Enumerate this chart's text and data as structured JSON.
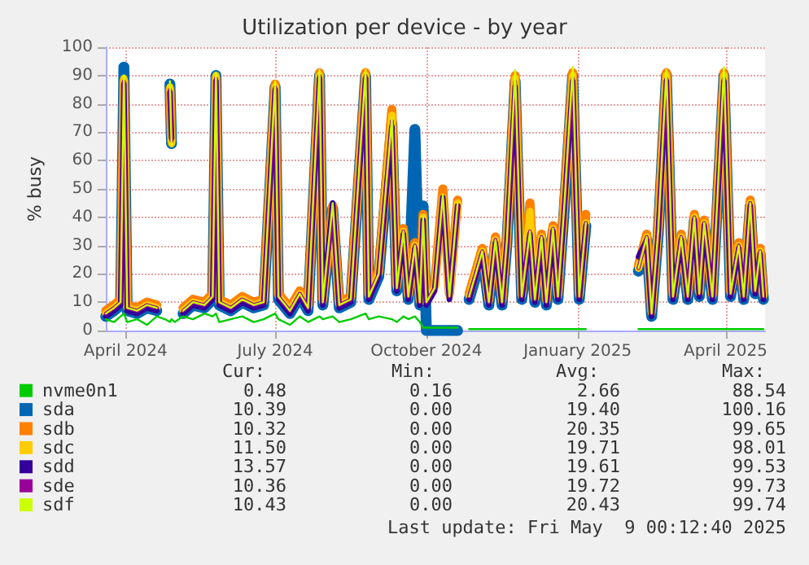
{
  "chart_data": {
    "type": "line",
    "title": "Utilization per device - by year",
    "ylabel": "% busy",
    "x": [
      "2024-04-03",
      "2024-04-08",
      "2024-04-12",
      "2024-04-14",
      "2024-04-16",
      "2024-04-22",
      "2024-04-28",
      "2024-05-04",
      "2024-05-09",
      "2024-05-12",
      "2024-05-13",
      "2024-05-15",
      "2024-05-20",
      "2024-05-26",
      "2024-06-02",
      "2024-06-07",
      "2024-06-09",
      "2024-06-11",
      "2024-06-18",
      "2024-06-25",
      "2024-07-02",
      "2024-07-08",
      "2024-07-15",
      "2024-07-17",
      "2024-07-24",
      "2024-07-30",
      "2024-08-04",
      "2024-08-11",
      "2024-08-13",
      "2024-08-19",
      "2024-08-23",
      "2024-08-30",
      "2024-09-08",
      "2024-09-10",
      "2024-09-16",
      "2024-09-24",
      "2024-09-27",
      "2024-10-01",
      "2024-10-04",
      "2024-10-08",
      "2024-10-11",
      "2024-10-13",
      "2024-10-15",
      "2024-10-20",
      "2024-10-25",
      "2024-10-29",
      "2024-11-03",
      "2024-11-06",
      "2024-11-10",
      "2024-11-18",
      "2024-11-22",
      "2024-11-26",
      "2024-11-30",
      "2024-12-03",
      "2024-12-08",
      "2024-12-12",
      "2024-12-17",
      "2024-12-20",
      "2024-12-24",
      "2024-12-27",
      "2024-12-31",
      "2025-01-03",
      "2025-01-07",
      "2025-01-12",
      "2025-01-16",
      "2025-01-20",
      "2025-02-05",
      "2025-02-21",
      "2025-02-26",
      "2025-03-01",
      "2025-03-05",
      "2025-03-10",
      "2025-03-14",
      "2025-03-19",
      "2025-03-23",
      "2025-03-27",
      "2025-03-30",
      "2025-04-02",
      "2025-04-07",
      "2025-04-14",
      "2025-04-18",
      "2025-04-23",
      "2025-04-26",
      "2025-04-30",
      "2025-05-03",
      "2025-05-06",
      "2025-05-08"
    ],
    "series": [
      {
        "name": "nvme0n1",
        "color": "#00cc00",
        "values": [
          4,
          3,
          5,
          6,
          3,
          4,
          2,
          5,
          4,
          3,
          4,
          3,
          5,
          4,
          6,
          5,
          6,
          3,
          4,
          5,
          3,
          4,
          6,
          4,
          2,
          5,
          3,
          5,
          4,
          5,
          3,
          4,
          6,
          4,
          5,
          4,
          3,
          5,
          4,
          5,
          3,
          1,
          1,
          1,
          1,
          1,
          1,
          null,
          0.5,
          0.5,
          0.5,
          0.5,
          0.5,
          0.5,
          0.5,
          0.5,
          0.5,
          0.5,
          0.5,
          0.5,
          0.5,
          0.5,
          0.5,
          0.5,
          0.5,
          0.5,
          null,
          0.5,
          0.5,
          0.5,
          0.5,
          0.5,
          0.5,
          0.5,
          0.5,
          0.5,
          0.5,
          0.5,
          0.5,
          0.5,
          0.5,
          0.5,
          0.5,
          0.5,
          0.5,
          0.5,
          0.5
        ]
      },
      {
        "name": "sda",
        "color": "#0066b3",
        "values": [
          5,
          7,
          9,
          93,
          7,
          6,
          8,
          7,
          null,
          87,
          66,
          null,
          6,
          9,
          8,
          11,
          90,
          9,
          7,
          10,
          8,
          9,
          86,
          11,
          6,
          12,
          7,
          90,
          9,
          43,
          8,
          10,
          90,
          11,
          19,
          73,
          14,
          34,
          11,
          71,
          9,
          44,
          0,
          0,
          0,
          0,
          0,
          null,
          11,
          27,
          9,
          31,
          9,
          31,
          88,
          11,
          34,
          10,
          32,
          9,
          35,
          11,
          44,
          90,
          11,
          37,
          null,
          21,
          32,
          5,
          34,
          90,
          11,
          32,
          11,
          39,
          12,
          37,
          11,
          90,
          12,
          29,
          11,
          44,
          13,
          27,
          11
        ]
      },
      {
        "name": "sdb",
        "color": "#ff8000",
        "values": [
          7,
          9,
          11,
          88,
          9,
          8,
          10,
          9,
          null,
          85,
          67,
          null,
          8,
          11,
          10,
          13,
          89,
          11,
          9,
          12,
          10,
          11,
          87,
          13,
          8,
          14,
          9,
          91,
          11,
          44,
          10,
          12,
          91,
          13,
          21,
          78,
          16,
          36,
          13,
          31,
          11,
          41,
          11,
          16,
          50,
          13,
          46,
          null,
          13,
          29,
          11,
          33,
          11,
          33,
          90,
          13,
          45,
          12,
          34,
          11,
          37,
          13,
          47,
          91,
          13,
          41,
          null,
          23,
          34,
          7,
          36,
          91,
          13,
          34,
          13,
          41,
          14,
          39,
          13,
          91,
          14,
          31,
          13,
          46,
          15,
          29,
          13
        ]
      },
      {
        "name": "sdc",
        "color": "#ffcc00",
        "values": [
          6,
          8,
          10,
          89,
          8,
          7,
          9,
          8,
          null,
          86,
          66,
          null,
          7,
          10,
          9,
          12,
          90,
          10,
          8,
          11,
          9,
          10,
          86,
          12,
          7,
          13,
          8,
          90,
          10,
          42,
          9,
          11,
          90,
          12,
          20,
          76,
          15,
          35,
          12,
          30,
          10,
          40,
          10,
          15,
          47,
          12,
          45,
          null,
          12,
          28,
          10,
          32,
          10,
          32,
          89,
          12,
          42,
          11,
          33,
          10,
          36,
          12,
          45,
          90,
          12,
          38,
          null,
          22,
          33,
          6,
          35,
          90,
          12,
          33,
          12,
          40,
          13,
          38,
          12,
          90,
          13,
          30,
          12,
          45,
          14,
          28,
          12
        ]
      },
      {
        "name": "sdd",
        "color": "#330099",
        "values": [
          5,
          7,
          9,
          87,
          7,
          6,
          8,
          7,
          null,
          84,
          68,
          null,
          6,
          9,
          8,
          11,
          88,
          9,
          7,
          10,
          8,
          9,
          85,
          11,
          6,
          12,
          7,
          89,
          9,
          45,
          8,
          10,
          89,
          11,
          19,
          72,
          14,
          34,
          11,
          29,
          9,
          39,
          9,
          14,
          47,
          11,
          44,
          null,
          11,
          27,
          9,
          31,
          9,
          31,
          86,
          11,
          34,
          10,
          32,
          9,
          35,
          11,
          44,
          88,
          11,
          37,
          null,
          26,
          32,
          5,
          34,
          88,
          11,
          32,
          11,
          39,
          12,
          37,
          11,
          88,
          12,
          29,
          11,
          44,
          13,
          27,
          11
        ]
      },
      {
        "name": "sde",
        "color": "#990099",
        "values": [
          6,
          8,
          10,
          88,
          8,
          7,
          9,
          8,
          null,
          85,
          67,
          null,
          7,
          10,
          9,
          12,
          89,
          10,
          8,
          11,
          9,
          10,
          86,
          12,
          7,
          13,
          8,
          90,
          10,
          41,
          9,
          11,
          90,
          12,
          20,
          74,
          15,
          35,
          12,
          30,
          10,
          38,
          10,
          15,
          46,
          12,
          44,
          null,
          12,
          28,
          10,
          32,
          10,
          32,
          88,
          12,
          35,
          11,
          33,
          10,
          36,
          12,
          45,
          89,
          12,
          38,
          null,
          22,
          33,
          6,
          35,
          89,
          12,
          33,
          12,
          40,
          13,
          38,
          12,
          89,
          13,
          30,
          12,
          45,
          14,
          28,
          12
        ]
      },
      {
        "name": "sdf",
        "color": "#ccff00",
        "values": [
          6,
          8,
          10,
          90,
          8,
          7,
          9,
          8,
          null,
          88,
          65,
          null,
          7,
          10,
          9,
          12,
          91,
          10,
          8,
          11,
          9,
          10,
          88,
          12,
          7,
          13,
          8,
          92,
          10,
          45,
          9,
          11,
          92,
          12,
          20,
          75,
          15,
          35,
          12,
          30,
          10,
          40,
          10,
          15,
          48,
          12,
          45,
          null,
          12,
          28,
          10,
          32,
          10,
          32,
          92,
          12,
          35,
          11,
          33,
          10,
          36,
          12,
          45,
          93,
          12,
          38,
          null,
          22,
          33,
          6,
          35,
          92,
          12,
          33,
          12,
          40,
          13,
          38,
          12,
          93,
          13,
          30,
          12,
          45,
          14,
          28,
          12
        ]
      }
    ],
    "xlim": [
      "2024-04-03",
      "2025-05-09"
    ],
    "xticks": [
      {
        "value": "2024-04-15",
        "label": "April 2024"
      },
      {
        "value": "2024-07-15",
        "label": "July 2024"
      },
      {
        "value": "2024-10-15",
        "label": "October 2024"
      },
      {
        "value": "2025-01-15",
        "label": "January 2025"
      },
      {
        "value": "2025-04-15",
        "label": "April 2025"
      }
    ],
    "ylim": [
      0,
      100
    ],
    "yticks": [
      0,
      10,
      20,
      30,
      40,
      50,
      60,
      70,
      80,
      90,
      100
    ],
    "grid": true,
    "legend": "bottom left",
    "annotations": [
      "Cur:",
      "Min:",
      "Avg:",
      "Max:",
      "0.48",
      "0.16",
      "2.66",
      "88.54",
      "10.39",
      "0.00",
      "19.40",
      "100.16",
      "10.32",
      "0.00",
      "20.35",
      "99.65",
      "11.50",
      "0.00",
      "19.71",
      "98.01",
      "13.57",
      "0.00",
      "19.61",
      "99.53",
      "10.36",
      "0.00",
      "19.72",
      "99.73",
      "10.43",
      "0.00",
      "20.43",
      "99.74",
      "Last update: Fri May  9 00:12:40 2025"
    ]
  }
}
